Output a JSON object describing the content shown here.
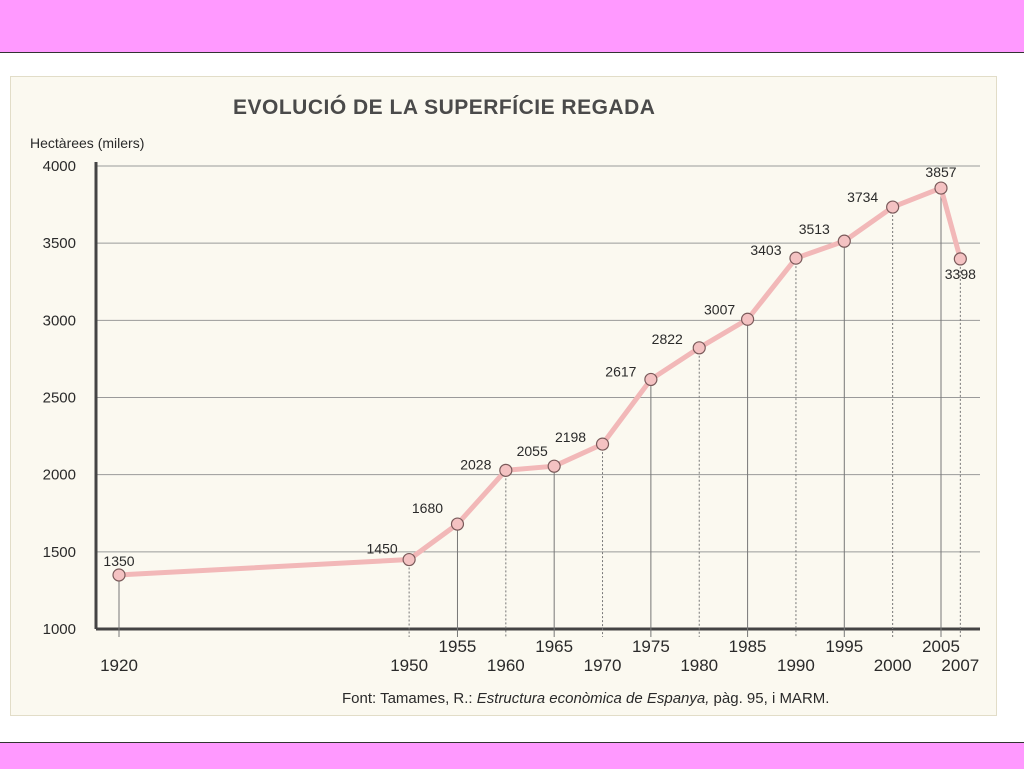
{
  "colors": {
    "band": "#ff99ff",
    "line": "#f2b8b8",
    "marker_fill": "#f4c2c2",
    "marker_stroke": "#7a5a5a"
  },
  "chart_data": {
    "type": "line",
    "title": "EVOLUCIÓ DE LA SUPERFÍCIE REGADA",
    "ylabel": "Hectàrees (milers)",
    "xlabel": "",
    "x": [
      1920,
      1950,
      1955,
      1960,
      1965,
      1970,
      1975,
      1980,
      1985,
      1990,
      1995,
      2000,
      2005,
      2007
    ],
    "values": [
      1350,
      1450,
      1680,
      2028,
      2055,
      2198,
      2617,
      2822,
      3007,
      3403,
      3513,
      3734,
      3857,
      3398
    ],
    "ylim": [
      1000,
      4000
    ],
    "yticks": [
      1000,
      1500,
      2000,
      2500,
      3000,
      3500,
      4000
    ],
    "grid": true,
    "source_prefix": "Font: Tamames, R.: ",
    "source_italic": "Estructura econòmica de Espanya,",
    "source_suffix": " pàg. 95, i MARM."
  }
}
